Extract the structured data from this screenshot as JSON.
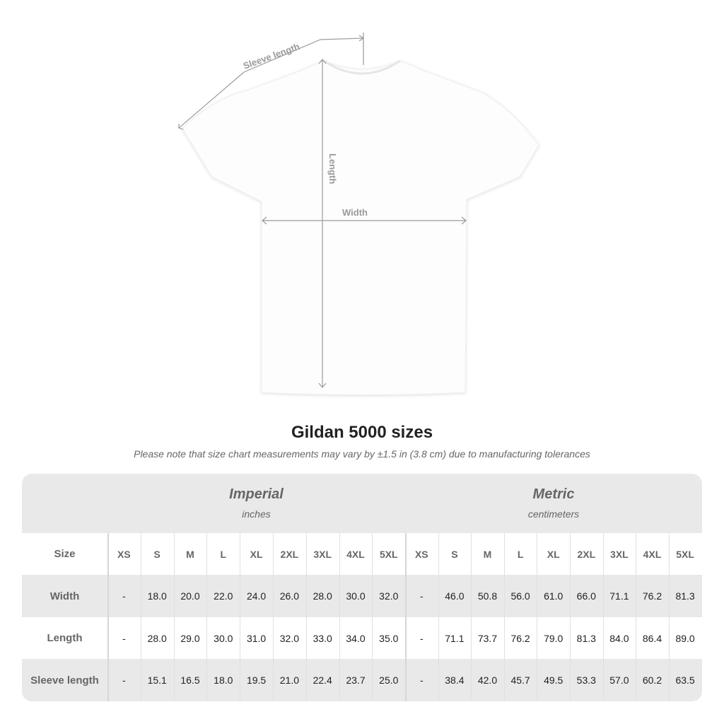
{
  "diagram": {
    "sleeve_label": "Sleeve length",
    "length_label": "Length",
    "width_label": "Width",
    "line_color": "#9a9a9a"
  },
  "title": "Gildan 5000 sizes",
  "note": "Please note that size chart measurements may vary by ±1.5 in (3.8 cm) due to manufacturing tolerances",
  "table": {
    "imperial": {
      "name": "Imperial",
      "unit": "inches"
    },
    "metric": {
      "name": "Metric",
      "unit": "centimeters"
    },
    "size_label": "Size",
    "sizes": [
      "XS",
      "S",
      "M",
      "L",
      "XL",
      "2XL",
      "3XL",
      "4XL",
      "5XL"
    ],
    "rows": [
      {
        "label": "Width",
        "imperial": [
          "-",
          "18.0",
          "20.0",
          "22.0",
          "24.0",
          "26.0",
          "28.0",
          "30.0",
          "32.0"
        ],
        "metric": [
          "-",
          "46.0",
          "50.8",
          "56.0",
          "61.0",
          "66.0",
          "71.1",
          "76.2",
          "81.3"
        ]
      },
      {
        "label": "Length",
        "imperial": [
          "-",
          "28.0",
          "29.0",
          "30.0",
          "31.0",
          "32.0",
          "33.0",
          "34.0",
          "35.0"
        ],
        "metric": [
          "-",
          "71.1",
          "73.7",
          "76.2",
          "79.0",
          "81.3",
          "84.0",
          "86.4",
          "89.0"
        ]
      },
      {
        "label": "Sleeve length",
        "imperial": [
          "-",
          "15.1",
          "16.5",
          "18.0",
          "19.5",
          "21.0",
          "22.4",
          "23.7",
          "25.0"
        ],
        "metric": [
          "-",
          "38.4",
          "42.0",
          "45.7",
          "49.5",
          "53.3",
          "57.0",
          "60.2",
          "63.5"
        ]
      }
    ]
  }
}
